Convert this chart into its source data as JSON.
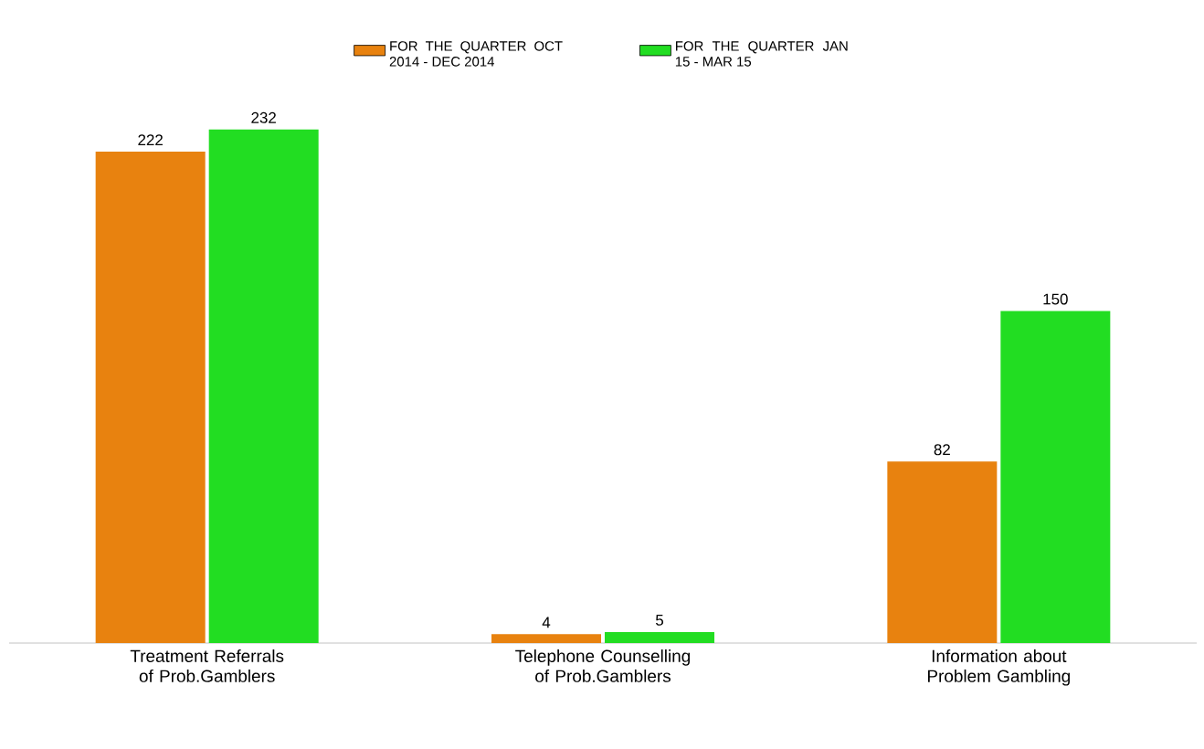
{
  "chart_data": {
    "type": "bar",
    "categories": [
      "Treatment Referrals of Prob.Gamblers",
      "Telephone Counselling of Prob.Gamblers",
      "Information about Problem Gambling"
    ],
    "series": [
      {
        "name": "FOR THE QUARTER OCT 2014 - DEC 2014",
        "color": "#e8820f",
        "values": [
          222,
          4,
          82
        ]
      },
      {
        "name": "FOR THE QUARTER JAN 15 - MAR 15",
        "color": "#22dd22",
        "values": [
          232,
          5,
          150
        ]
      }
    ],
    "data_labels": true,
    "legend": "top"
  }
}
